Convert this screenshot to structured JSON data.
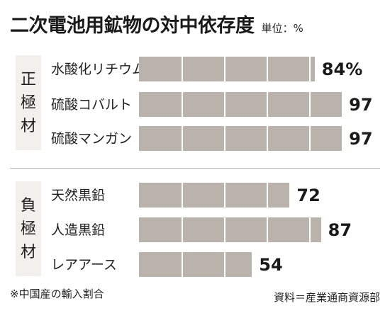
{
  "header": {
    "title": "二次電池用鉱物の対中依存度",
    "unit": "単位：%"
  },
  "groups": [
    {
      "label_chars": [
        "正",
        "極",
        "材"
      ]
    },
    {
      "label_chars": [
        "負",
        "極",
        "材"
      ]
    }
  ],
  "chart_data": {
    "type": "bar",
    "orientation": "horizontal",
    "title": "二次電池用鉱物の対中依存度",
    "unit": "%",
    "xlim": [
      0,
      100
    ],
    "categories": [
      "水酸化リチウム",
      "硫酸コバルト",
      "硫酸マンガン",
      "天然黒鉛",
      "人造黒鉛",
      "レアアース"
    ],
    "values": [
      84,
      97,
      97,
      72,
      87,
      54
    ],
    "value_labels": [
      "84%",
      "97",
      "97",
      "72",
      "87",
      "54"
    ],
    "groups": [
      {
        "name": "正極材",
        "categories": [
          "水酸化リチウム",
          "硫酸コバルト",
          "硫酸マンガン"
        ]
      },
      {
        "name": "負極材",
        "categories": [
          "天然黒鉛",
          "人造黒鉛",
          "レアアース"
        ]
      }
    ],
    "bar_color": "#b9b3ab",
    "panel_color": "#f2f0ec"
  },
  "footer": {
    "note": "※中国産の輸入割合",
    "source": "資料＝産業通商資源部"
  }
}
